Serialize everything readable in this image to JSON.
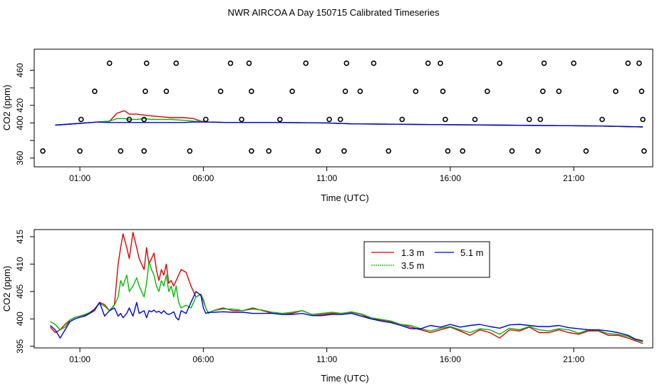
{
  "page_title": "NWR AIRCOA A  Day 150715  Calibrated Timeseries",
  "colors": {
    "s1": "#dd0000",
    "s2": "#00bb00",
    "s3": "#0000dd",
    "axis": "#000000"
  },
  "chart_data": [
    {
      "type": "line",
      "name": "top-panel",
      "xlabel": "Time (UTC)",
      "ylabel": "CO2 (ppm)",
      "xlim": [
        -0.85,
        24.2
      ],
      "ylim": [
        350,
        484
      ],
      "x_ticks": [
        1,
        6,
        11,
        16,
        21
      ],
      "x_tick_labels": [
        "01:00",
        "06:00",
        "11:00",
        "16:00",
        "21:00"
      ],
      "y_ticks": [
        360,
        380,
        400,
        420,
        440,
        460
      ],
      "y_tick_labels": [
        "360",
        "",
        "400",
        "420",
        "",
        "460"
      ],
      "series": [
        {
          "name": "1.3 m",
          "color_key": "s1",
          "x": [
            0.0,
            1.0,
            1.7,
            2.2,
            2.5,
            2.8,
            3.0,
            3.3,
            3.6,
            3.9,
            4.3,
            4.7,
            5.2,
            5.6,
            5.9,
            6.2,
            7,
            9,
            11,
            12,
            14,
            16,
            18,
            20,
            22,
            23.8
          ],
          "values": [
            397.5,
            399.5,
            401,
            402,
            411,
            414,
            410,
            410,
            409,
            408,
            407,
            406,
            406,
            405,
            402,
            401,
            400.5,
            400.5,
            400,
            399,
            398.5,
            398,
            397.5,
            397,
            396.5,
            395.5
          ]
        },
        {
          "name": "3.5 m",
          "color_key": "s2",
          "x": [
            0.0,
            1.0,
            1.7,
            2.2,
            2.5,
            2.8,
            3.0,
            3.3,
            3.6,
            3.9,
            4.3,
            4.7,
            5.2,
            5.6,
            5.9,
            6.2,
            7,
            9,
            11,
            12,
            14,
            16,
            18,
            20,
            22,
            23.8
          ],
          "values": [
            397.5,
            399.5,
            401,
            402,
            405,
            405,
            404,
            404,
            405,
            404,
            404,
            404,
            403,
            402,
            401.5,
            401,
            400.5,
            400.5,
            400,
            399,
            398.5,
            398,
            397.5,
            397,
            396.5,
            395.5
          ]
        },
        {
          "name": "5.1 m",
          "color_key": "s3",
          "x": [
            0.0,
            1.0,
            1.7,
            2.2,
            2.5,
            2.8,
            3.0,
            3.3,
            3.6,
            3.9,
            4.3,
            4.7,
            5.2,
            5.6,
            5.9,
            6.2,
            7,
            9,
            11,
            12,
            14,
            16,
            18,
            20,
            22,
            23.8
          ],
          "values": [
            397.5,
            399.5,
            401,
            400.5,
            400.5,
            400.5,
            400.5,
            400.5,
            400.5,
            400.5,
            400.5,
            400.5,
            400.5,
            401,
            401,
            401,
            400.5,
            400.5,
            400,
            399,
            398.5,
            398,
            397.5,
            397,
            396.5,
            395.5
          ]
        }
      ],
      "scatter": {
        "name": "calibration-points",
        "points": [
          [
            -0.5,
            368
          ],
          [
            1.05,
            404
          ],
          [
            1.6,
            436
          ],
          [
            2.2,
            468
          ],
          [
            3.6,
            404
          ],
          [
            1.0,
            368
          ],
          [
            2.65,
            368
          ],
          [
            3.0,
            404
          ],
          [
            3.65,
            436
          ],
          [
            3.7,
            468
          ],
          [
            3.6,
            368
          ],
          [
            4.5,
            436
          ],
          [
            4.9,
            468
          ],
          [
            5.45,
            368
          ],
          [
            6.1,
            404
          ],
          [
            6.7,
            436
          ],
          [
            7.1,
            468
          ],
          [
            7.55,
            404
          ],
          [
            7.85,
            468
          ],
          [
            7.95,
            436
          ],
          [
            7.95,
            368
          ],
          [
            8.65,
            368
          ],
          [
            9.1,
            404
          ],
          [
            9.6,
            436
          ],
          [
            10.15,
            468
          ],
          [
            10.65,
            368
          ],
          [
            11.1,
            404
          ],
          [
            11.55,
            404
          ],
          [
            11.7,
            368
          ],
          [
            11.75,
            436
          ],
          [
            11.8,
            468
          ],
          [
            12.35,
            436
          ],
          [
            12.9,
            468
          ],
          [
            13.5,
            368
          ],
          [
            14.05,
            404
          ],
          [
            14.6,
            436
          ],
          [
            15.1,
            468
          ],
          [
            15.6,
            468
          ],
          [
            15.7,
            436
          ],
          [
            15.8,
            404
          ],
          [
            15.9,
            368
          ],
          [
            16.5,
            368
          ],
          [
            17.0,
            404
          ],
          [
            17.5,
            436
          ],
          [
            18.0,
            468
          ],
          [
            18.5,
            368
          ],
          [
            19.2,
            404
          ],
          [
            19.55,
            368
          ],
          [
            19.65,
            404
          ],
          [
            19.75,
            436
          ],
          [
            19.8,
            468
          ],
          [
            20.4,
            436
          ],
          [
            21.0,
            468
          ],
          [
            21.5,
            368
          ],
          [
            22.15,
            404
          ],
          [
            22.7,
            436
          ],
          [
            23.2,
            468
          ],
          [
            23.65,
            468
          ],
          [
            23.75,
            436
          ],
          [
            23.8,
            404
          ],
          [
            23.85,
            368
          ]
        ]
      }
    },
    {
      "type": "line",
      "name": "bottom-panel",
      "xlabel": "Time (UTC)",
      "ylabel": "CO2 (ppm)",
      "xlim": [
        -0.85,
        24.2
      ],
      "ylim": [
        394.7,
        416.3
      ],
      "x_ticks": [
        1,
        6,
        11,
        16,
        21
      ],
      "x_tick_labels": [
        "01:00",
        "06:00",
        "11:00",
        "16:00",
        "21:00"
      ],
      "y_ticks": [
        395,
        400,
        405,
        410,
        415
      ],
      "y_tick_labels": [
        "395",
        "400",
        "405",
        "410",
        "415"
      ],
      "legend": {
        "entries": [
          "1.3 m",
          "3.5 m",
          "5.1 m"
        ],
        "color_keys": [
          "s1",
          "s2",
          "s3"
        ],
        "placement": "top-center"
      },
      "series": [
        {
          "name": "1.3 m",
          "color_key": "s1",
          "x": [
            -0.2,
            0,
            0.2,
            0.4,
            0.6,
            0.8,
            1.0,
            1.2,
            1.4,
            1.6,
            1.8,
            2.0,
            2.2,
            2.4,
            2.55,
            2.65,
            2.75,
            2.9,
            3.0,
            3.15,
            3.3,
            3.4,
            3.6,
            3.7,
            3.8,
            3.9,
            4.0,
            4.1,
            4.2,
            4.3,
            4.4,
            4.5,
            4.6,
            4.7,
            4.8,
            4.9,
            5.0,
            5.1,
            5.3,
            5.5,
            5.7,
            5.9,
            6.0,
            6.1,
            6.2,
            6.4,
            6.8,
            7.2,
            7.6,
            8.0,
            8.4,
            8.8,
            9.2,
            9.6,
            10.0,
            10.4,
            10.8,
            11.2,
            11.6,
            12.0,
            12.4,
            12.8,
            13.2,
            13.6,
            14.0,
            14.4,
            14.8,
            15.2,
            15.6,
            16.0,
            16.4,
            16.8,
            17.2,
            17.6,
            18.0,
            18.4,
            18.8,
            19.2,
            19.6,
            20.0,
            20.4,
            20.8,
            21.2,
            21.6,
            22.0,
            22.4,
            22.8,
            23.2,
            23.5,
            23.8
          ],
          "values": [
            398.5,
            397.5,
            398,
            399,
            399.8,
            400.3,
            400.5,
            400.7,
            401,
            401.5,
            403,
            402.6,
            401.5,
            402.6,
            410,
            413,
            415.5,
            413,
            411,
            415.8,
            413,
            411,
            409,
            413,
            410,
            411,
            412,
            409,
            407,
            409,
            408,
            410,
            406.5,
            407,
            406,
            407,
            408,
            409,
            408.5,
            406,
            404,
            404.5,
            403.5,
            402,
            401,
            401.5,
            402,
            401.5,
            401.5,
            402,
            401.5,
            401,
            400.8,
            401,
            401.5,
            400.8,
            400.8,
            401,
            401,
            401.2,
            400.8,
            400,
            399.8,
            399.5,
            399,
            398.5,
            398,
            397.5,
            398,
            398.5,
            397.8,
            397,
            398,
            397.5,
            396.5,
            398,
            397.8,
            398.5,
            397.5,
            397.5,
            398,
            397.5,
            397.2,
            397.8,
            397.8,
            397,
            397,
            396.5,
            396,
            395.5
          ]
        },
        {
          "name": "3.5 m",
          "color_key": "s2",
          "x": [
            -0.2,
            0,
            0.2,
            0.4,
            0.6,
            0.8,
            1.0,
            1.2,
            1.4,
            1.6,
            1.8,
            2.0,
            2.2,
            2.4,
            2.55,
            2.65,
            2.75,
            2.9,
            3.0,
            3.15,
            3.3,
            3.4,
            3.6,
            3.7,
            3.8,
            3.9,
            4.0,
            4.1,
            4.2,
            4.3,
            4.4,
            4.5,
            4.6,
            4.7,
            4.8,
            4.9,
            5.0,
            5.1,
            5.3,
            5.5,
            5.7,
            5.9,
            6.0,
            6.1,
            6.2,
            6.4,
            6.8,
            7.2,
            7.6,
            8.0,
            8.4,
            8.8,
            9.2,
            9.6,
            10.0,
            10.4,
            10.8,
            11.2,
            11.6,
            12.0,
            12.4,
            12.8,
            13.2,
            13.6,
            14.0,
            14.4,
            14.8,
            15.2,
            15.6,
            16.0,
            16.4,
            16.8,
            17.2,
            17.6,
            18.0,
            18.4,
            18.8,
            19.2,
            19.6,
            20.0,
            20.4,
            20.8,
            21.2,
            21.6,
            22.0,
            22.4,
            22.8,
            23.2,
            23.5,
            23.8
          ],
          "values": [
            399.5,
            399,
            398,
            398.5,
            399.8,
            400.3,
            400.5,
            400.8,
            401.2,
            401.8,
            402.8,
            402.3,
            401.5,
            402.5,
            404,
            407,
            406,
            408,
            405,
            406,
            407.5,
            406,
            404,
            406.5,
            410.5,
            409,
            408,
            406,
            405,
            407,
            406,
            408,
            405,
            406,
            404,
            406,
            403,
            402,
            402.5,
            402,
            404,
            404.5,
            403.2,
            402,
            401,
            401.5,
            401.8,
            401.8,
            401.5,
            401.8,
            401.6,
            401.2,
            401,
            401.2,
            401.5,
            400.8,
            401,
            401.2,
            401,
            401.3,
            400.9,
            400.2,
            399.9,
            399.6,
            399,
            398.8,
            398.2,
            397.8,
            398.3,
            398.6,
            398,
            397.5,
            398.2,
            398,
            397.2,
            398.3,
            398,
            398.6,
            398,
            397.8,
            398.2,
            398,
            397.4,
            398,
            397.9,
            397.3,
            397.2,
            396.8,
            396.2,
            395.8
          ]
        },
        {
          "name": "5.1 m",
          "color_key": "s3",
          "x": [
            -0.2,
            0,
            0.2,
            0.4,
            0.6,
            0.8,
            1.0,
            1.2,
            1.4,
            1.6,
            1.8,
            2.0,
            2.2,
            2.4,
            2.55,
            2.65,
            2.75,
            2.9,
            3.0,
            3.15,
            3.3,
            3.4,
            3.6,
            3.7,
            3.8,
            3.9,
            4.0,
            4.1,
            4.2,
            4.3,
            4.4,
            4.5,
            4.6,
            4.7,
            4.8,
            4.9,
            5.0,
            5.1,
            5.3,
            5.5,
            5.7,
            5.9,
            6.0,
            6.1,
            6.2,
            6.4,
            6.8,
            7.2,
            7.6,
            8.0,
            8.4,
            8.8,
            9.2,
            9.6,
            10.0,
            10.4,
            10.8,
            11.2,
            11.6,
            12.0,
            12.4,
            12.8,
            13.2,
            13.6,
            14.0,
            14.4,
            14.8,
            15.2,
            15.6,
            16.0,
            16.4,
            16.8,
            17.2,
            17.6,
            18.0,
            18.4,
            18.8,
            19.2,
            19.6,
            20.0,
            20.4,
            20.8,
            21.2,
            21.6,
            22.0,
            22.4,
            22.8,
            23.2,
            23.5,
            23.8
          ],
          "values": [
            398.8,
            398,
            396.5,
            398,
            399.5,
            400,
            400.3,
            400.5,
            401,
            401.8,
            403,
            400.5,
            401.5,
            402,
            400.5,
            401,
            400.2,
            401,
            402,
            400.5,
            403,
            401,
            401.5,
            400.2,
            401.5,
            401.3,
            401.6,
            401.2,
            401.4,
            401,
            401.5,
            401,
            400.8,
            401,
            401.3,
            400.2,
            399.8,
            401.5,
            401,
            403,
            405,
            404.3,
            402,
            401,
            401.2,
            401.2,
            401.3,
            401.2,
            401.2,
            401,
            401,
            401,
            400.8,
            400.8,
            401,
            400.6,
            400.6,
            400.8,
            400.8,
            401,
            400.5,
            400,
            399.6,
            399.3,
            398.8,
            398.2,
            398.2,
            398.8,
            398.5,
            399,
            398.5,
            398.8,
            399,
            398.6,
            398.3,
            398.9,
            399,
            398.8,
            398.6,
            398.6,
            398.8,
            398.4,
            398.2,
            398,
            398,
            397.8,
            397.5,
            397,
            396.3,
            396
          ]
        }
      ]
    }
  ]
}
